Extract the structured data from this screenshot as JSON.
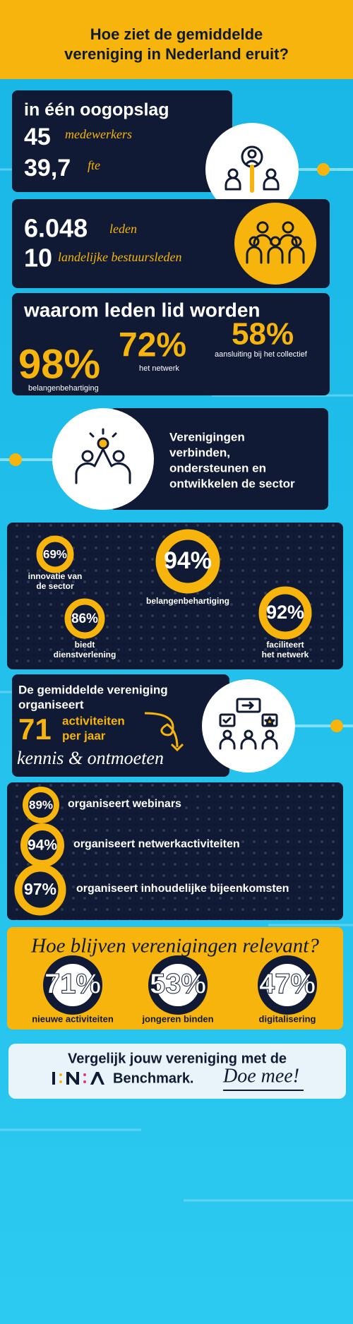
{
  "header": {
    "title": [
      "Hoe ziet de gemiddelde",
      "vereniging in Nederland eruit?"
    ]
  },
  "at_a_glance": {
    "title": "in één oogopslag",
    "stats": [
      {
        "value": "45",
        "label": "medewerkers"
      },
      {
        "value": "39,7",
        "label": "fte"
      }
    ]
  },
  "members": {
    "stats": [
      {
        "value": "6.048",
        "label": "leden"
      },
      {
        "value": "10",
        "label": "landelijke bestuursleden"
      }
    ]
  },
  "why_join": {
    "title": "waarom leden lid worden",
    "items": [
      {
        "value": "98%",
        "label": "belangenbehartiging"
      },
      {
        "value": "72%",
        "label": "het netwerk"
      },
      {
        "value": "58%",
        "label": "aansluiting bij het collectief"
      }
    ]
  },
  "mission": {
    "text": [
      "Verenigingen",
      "verbinden,",
      "ondersteunen en",
      "ontwikkelen de sector"
    ]
  },
  "roles": {
    "items": [
      {
        "value": "69%",
        "label": [
          "innovatie van",
          "de sector"
        ]
      },
      {
        "value": "94%",
        "label": [
          "belangenbehartiging"
        ]
      },
      {
        "value": "86%",
        "label": [
          "biedt",
          "dienstverlening"
        ]
      },
      {
        "value": "92%",
        "label": [
          "faciliteert",
          "het netwerk"
        ]
      }
    ]
  },
  "activities": {
    "title": [
      "De gemiddelde vereniging",
      "organiseert"
    ],
    "value": "71",
    "unit": [
      "activiteiten",
      "per jaar"
    ],
    "tagline": "kennis & ontmoeten"
  },
  "organises": {
    "items": [
      {
        "value": "89%",
        "label": "organiseert webinars"
      },
      {
        "value": "94%",
        "label": "organiseert netwerkactiviteiten"
      },
      {
        "value": "97%",
        "label": "organiseert inhoudelijke bijeenkomsten"
      }
    ]
  },
  "relevance": {
    "title": "Hoe blijven verenigingen relevant?",
    "items": [
      {
        "value": "71%",
        "label": "nieuwe activiteiten"
      },
      {
        "value": "53%",
        "label": "jongeren binden"
      },
      {
        "value": "47%",
        "label": "digitalisering"
      }
    ]
  },
  "footer": {
    "line": "Vergelijk jouw vereniging met de",
    "brand": "Benchmark.",
    "cta": "Doe mee!"
  }
}
